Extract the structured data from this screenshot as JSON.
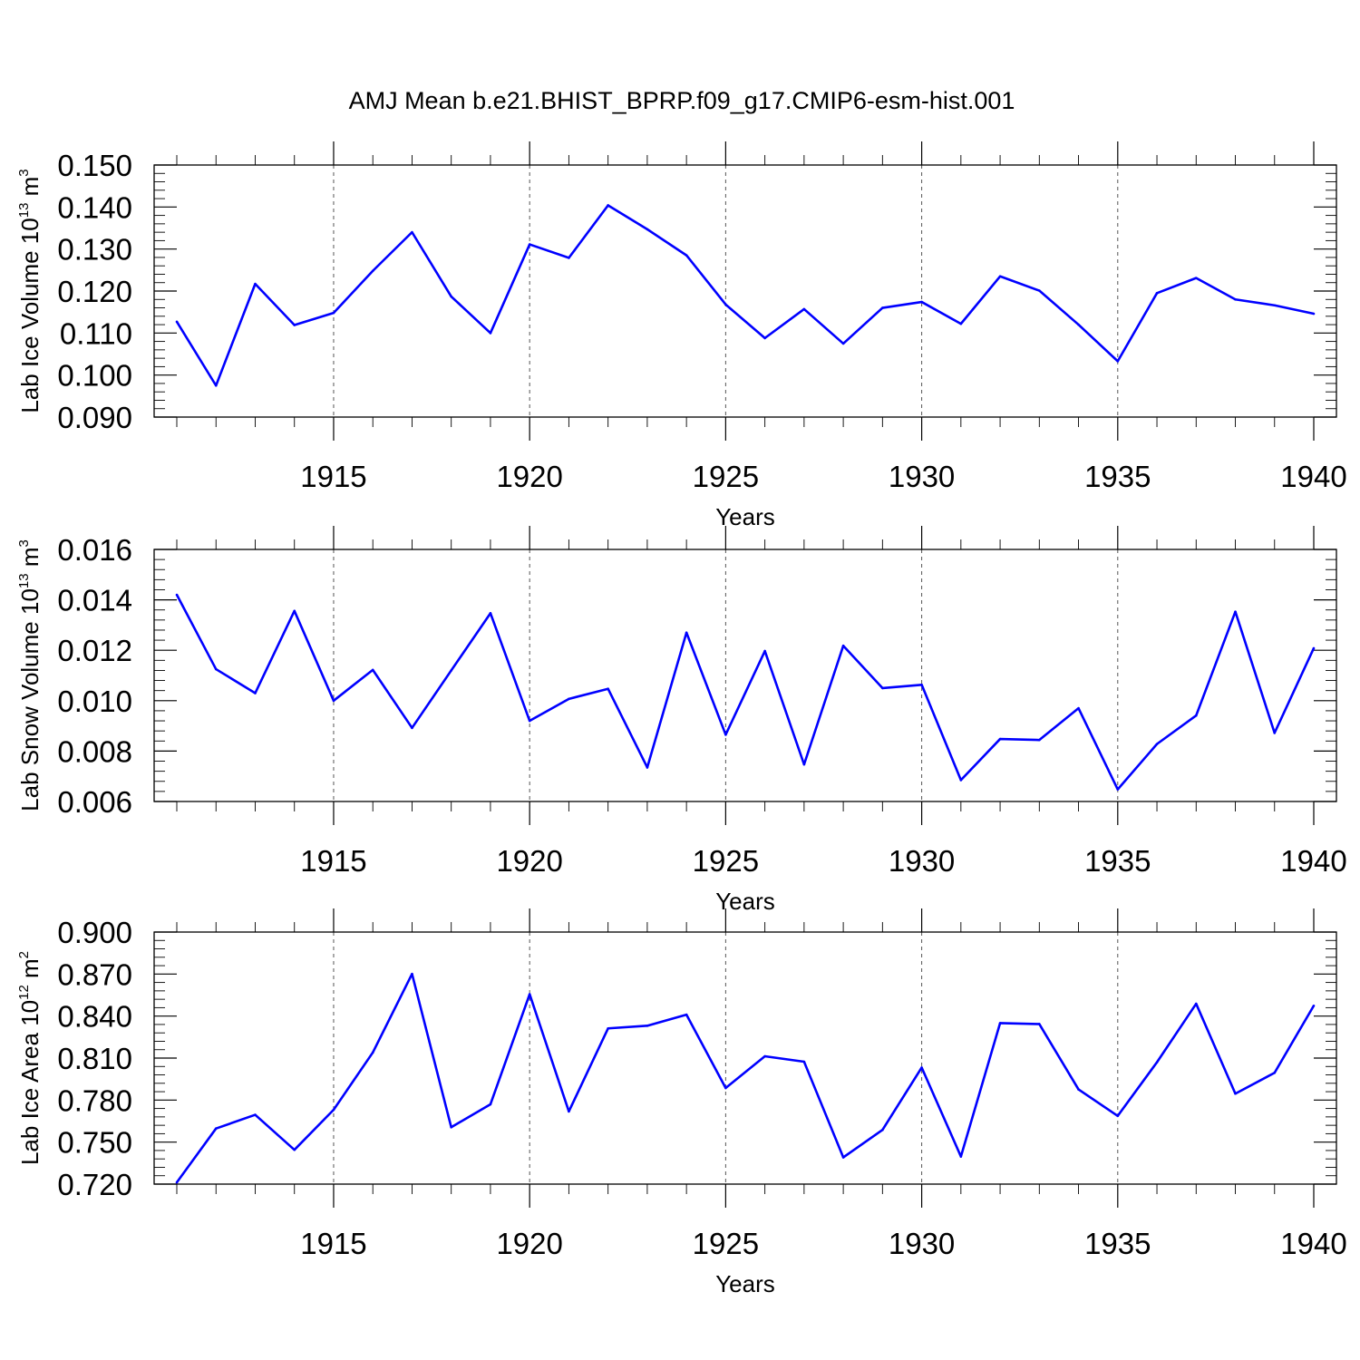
{
  "title": "AMJ Mean b.e21.BHIST_BPRP.f09_g17.CMIP6-esm-hist.001",
  "colors": {
    "line": "#0000ff",
    "axes": "#000000",
    "background": "#ffffff",
    "grid": "#555555"
  },
  "chart_data": [
    {
      "type": "line",
      "ylabel": {
        "main": "Lab Ice Volume 10",
        "exp": "13",
        "unit": " m",
        "unit_exp": "3"
      },
      "xlabel": "Years",
      "xlim": [
        1911,
        1940
      ],
      "ylim": [
        0.09,
        0.15
      ],
      "yticks": [
        0.09,
        0.1,
        0.11,
        0.12,
        0.13,
        0.14,
        0.15
      ],
      "ytick_labels": [
        "0.090",
        "0.100",
        "0.110",
        "0.120",
        "0.130",
        "0.140",
        "0.150"
      ],
      "xticks": [
        1915,
        1920,
        1925,
        1930,
        1935,
        1940
      ],
      "xtick_labels": [
        "1915",
        "1920",
        "1925",
        "1930",
        "1935",
        "1940"
      ],
      "grid": "vertical dashed at major x ticks",
      "x": [
        1911,
        1912,
        1913,
        1914,
        1915,
        1916,
        1917,
        1918,
        1919,
        1920,
        1921,
        1922,
        1923,
        1924,
        1925,
        1926,
        1927,
        1928,
        1929,
        1930,
        1931,
        1932,
        1933,
        1934,
        1935,
        1936,
        1937,
        1938,
        1939,
        1940
      ],
      "values": [
        0.1127,
        0.0975,
        0.1217,
        0.1119,
        0.1148,
        0.1248,
        0.134,
        0.1187,
        0.11,
        0.1311,
        0.1279,
        0.1404,
        0.1347,
        0.1285,
        0.1168,
        0.1088,
        0.1157,
        0.1075,
        0.116,
        0.1174,
        0.1122,
        0.1235,
        0.1201,
        0.112,
        0.1033,
        0.1195,
        0.1231,
        0.118,
        0.1166,
        0.1146
      ]
    },
    {
      "type": "line",
      "ylabel": {
        "main": "Lab Snow Volume 10",
        "exp": "13",
        "unit": " m",
        "unit_exp": "3"
      },
      "xlabel": "Years",
      "xlim": [
        1911,
        1940
      ],
      "ylim": [
        0.006,
        0.016
      ],
      "yticks": [
        0.006,
        0.008,
        0.01,
        0.012,
        0.014,
        0.016
      ],
      "ytick_labels": [
        "0.006",
        "0.008",
        "0.010",
        "0.012",
        "0.014",
        "0.016"
      ],
      "xticks": [
        1915,
        1920,
        1925,
        1930,
        1935,
        1940
      ],
      "xtick_labels": [
        "1915",
        "1920",
        "1925",
        "1930",
        "1935",
        "1940"
      ],
      "grid": "vertical dashed at major x ticks",
      "x": [
        1911,
        1912,
        1913,
        1914,
        1915,
        1916,
        1917,
        1918,
        1919,
        1920,
        1921,
        1922,
        1923,
        1924,
        1925,
        1926,
        1927,
        1928,
        1929,
        1930,
        1931,
        1932,
        1933,
        1934,
        1935,
        1936,
        1937,
        1938,
        1939,
        1940
      ],
      "values": [
        0.0142,
        0.01125,
        0.0103,
        0.01356,
        0.01,
        0.01122,
        0.00892,
        0.0112,
        0.01347,
        0.0092,
        0.01007,
        0.01047,
        0.00735,
        0.0127,
        0.00865,
        0.01197,
        0.00747,
        0.01218,
        0.0105,
        0.01063,
        0.00685,
        0.00848,
        0.00844,
        0.0097,
        0.00648,
        0.00828,
        0.00941,
        0.01353,
        0.00872,
        0.01208
      ]
    },
    {
      "type": "line",
      "ylabel": {
        "main": "Lab Ice Area 10",
        "exp": "12",
        "unit": " m",
        "unit_exp": "2"
      },
      "xlabel": "Years",
      "xlim": [
        1911,
        1940
      ],
      "ylim": [
        0.72,
        0.9
      ],
      "yticks": [
        0.72,
        0.75,
        0.78,
        0.81,
        0.84,
        0.87,
        0.9
      ],
      "ytick_labels": [
        "0.720",
        "0.750",
        "0.780",
        "0.810",
        "0.840",
        "0.870",
        "0.900"
      ],
      "xticks": [
        1915,
        1920,
        1925,
        1930,
        1935,
        1940
      ],
      "xtick_labels": [
        "1915",
        "1920",
        "1925",
        "1930",
        "1935",
        "1940"
      ],
      "grid": "vertical dashed at major x ticks",
      "x": [
        1911,
        1912,
        1913,
        1914,
        1915,
        1916,
        1917,
        1918,
        1919,
        1920,
        1921,
        1922,
        1923,
        1924,
        1925,
        1926,
        1927,
        1928,
        1929,
        1930,
        1931,
        1932,
        1933,
        1934,
        1935,
        1936,
        1937,
        1938,
        1939,
        1940
      ],
      "values": [
        0.7212,
        0.7597,
        0.7695,
        0.7445,
        0.7731,
        0.814,
        0.8701,
        0.7606,
        0.777,
        0.8556,
        0.7719,
        0.8312,
        0.8331,
        0.841,
        0.7886,
        0.8113,
        0.8074,
        0.7391,
        0.7587,
        0.8032,
        0.7397,
        0.835,
        0.8343,
        0.7876,
        0.7687,
        0.807,
        0.8488,
        0.7846,
        0.7995,
        0.8474
      ]
    }
  ]
}
